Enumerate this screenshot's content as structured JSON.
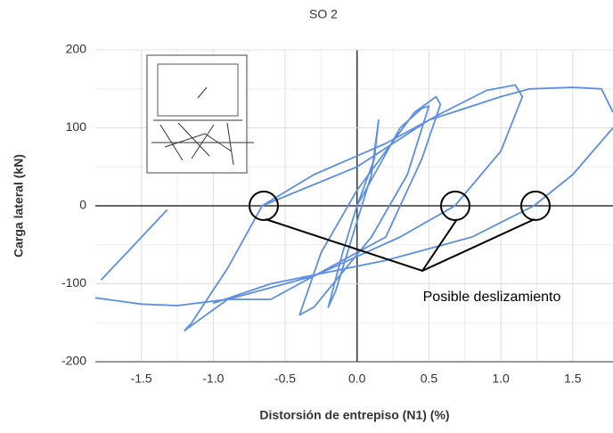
{
  "chart_data": {
    "type": "line",
    "title": "SO 2",
    "x_label": "Distorsión de entrepiso (N1) (%)",
    "y_label": "Carga lateral (kN)",
    "annotation": "Posible deslizamiento",
    "xlim": [
      -1.82,
      1.78
    ],
    "ylim": [
      -200,
      200
    ],
    "xticks": [
      {
        "value": -1.5,
        "label": "-1.5"
      },
      {
        "value": -1.0,
        "label": "-1.0"
      },
      {
        "value": -0.5,
        "label": "-0.5"
      },
      {
        "value": 0,
        "label": "0.0"
      },
      {
        "value": 0.5,
        "label": "0.5"
      },
      {
        "value": 1.0,
        "label": "1.0"
      },
      {
        "value": 1.5,
        "label": "1.5"
      }
    ],
    "yticks": [
      -200,
      -100,
      0,
      100,
      200
    ],
    "grid": true,
    "series": [
      {
        "color": "#5b8ee6",
        "x": [
          0,
          0.12,
          0.15,
          0.1,
          0,
          -0.15,
          -0.2,
          -0.1,
          0,
          0.3,
          0.45,
          0.5,
          0.35,
          0.1,
          -0.3,
          -0.4,
          -0.25,
          0,
          0.4,
          0.55,
          0.58,
          0.45,
          0.2,
          -0.6,
          -0.9,
          -1.05,
          -1.2,
          -1.15,
          -0.9,
          -0.66,
          -0.3,
          0.2,
          0.6,
          0.9,
          1.1,
          1.15,
          1.0,
          0.68,
          0.3,
          -0.3,
          -0.9,
          -1.25,
          -1.5,
          -1.82,
          null,
          -1.78,
          -1.6,
          -1.32,
          null,
          -0.66,
          0,
          0.5,
          1.0,
          1.2,
          1.5,
          1.7,
          1.78,
          null,
          1.78,
          1.5,
          1.23,
          0.8,
          0.2,
          -0.6,
          -1.0
        ],
        "values": [
          0,
          60,
          110,
          40,
          -20,
          -110,
          -130,
          -60,
          0,
          100,
          125,
          128,
          40,
          -40,
          -130,
          -140,
          -60,
          20,
          120,
          140,
          130,
          60,
          -40,
          -120,
          -120,
          -140,
          -160,
          -150,
          -80,
          0,
          40,
          80,
          120,
          148,
          155,
          140,
          70,
          0,
          -40,
          -90,
          -120,
          -128,
          -126,
          -118,
          null,
          -95,
          -60,
          -5,
          null,
          0,
          50,
          110,
          140,
          150,
          152,
          150,
          120,
          null,
          100,
          40,
          0,
          -40,
          -70,
          -100,
          -125
        ]
      }
    ]
  }
}
